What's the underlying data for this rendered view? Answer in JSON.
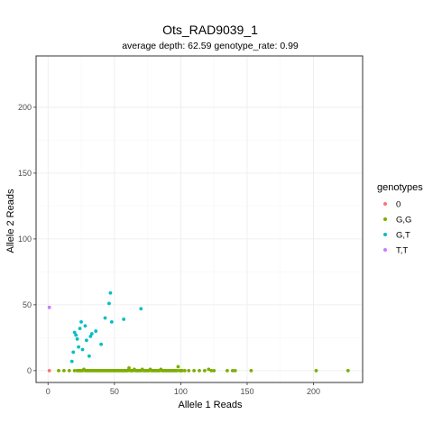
{
  "chart_data": {
    "type": "scatter",
    "title": "Ots_RAD9039_1",
    "subtitle": "average depth:  62.59  genotype_rate:  0.99",
    "xlabel": "Allele 1 Reads",
    "ylabel": "Allele 2 Reads",
    "xlim": [
      -9,
      237
    ],
    "ylim": [
      -9,
      239
    ],
    "xticks": [
      0,
      50,
      100,
      150,
      200
    ],
    "yticks": [
      0,
      50,
      100,
      150,
      200
    ],
    "grid": true,
    "legend": {
      "title": "genotypes",
      "position": "right",
      "entries": [
        {
          "label": "0",
          "color": "#F8766D"
        },
        {
          "label": "G,G",
          "color": "#7CAE00"
        },
        {
          "label": "G,T",
          "color": "#00BFC4"
        },
        {
          "label": "T,T",
          "color": "#C77CFF"
        }
      ]
    },
    "series": [
      {
        "name": "0",
        "color": "#F8766D",
        "x": [
          1
        ],
        "y": [
          0
        ]
      },
      {
        "name": "G,G",
        "color": "#7CAE00",
        "x": [
          8,
          12,
          16,
          20,
          22,
          23,
          24,
          25,
          26,
          27,
          28,
          29,
          30,
          31,
          32,
          33,
          34,
          35,
          36,
          37,
          38,
          39,
          40,
          41,
          42,
          43,
          44,
          45,
          46,
          47,
          48,
          49,
          50,
          51,
          52,
          53,
          54,
          55,
          56,
          57,
          58,
          59,
          60,
          61,
          62,
          63,
          64,
          65,
          66,
          67,
          68,
          69,
          70,
          71,
          72,
          73,
          74,
          75,
          76,
          77,
          78,
          79,
          80,
          81,
          82,
          83,
          84,
          85,
          86,
          87,
          88,
          89,
          90,
          91,
          92,
          93,
          94,
          95,
          96,
          97,
          98,
          99,
          100,
          101,
          103,
          106,
          110,
          114,
          118,
          121,
          123,
          125,
          135,
          139,
          141,
          153,
          202,
          226
        ],
        "y": [
          0,
          0,
          0,
          0,
          0,
          0,
          0,
          0,
          0,
          1,
          0,
          0,
          0,
          0,
          0,
          0,
          0,
          0,
          0,
          0,
          0,
          0,
          0,
          0,
          0,
          0,
          0,
          0,
          0,
          0,
          0,
          0,
          0,
          0,
          0,
          0,
          0,
          0,
          0,
          0,
          0,
          0,
          0,
          2,
          0,
          0,
          0,
          1,
          0,
          0,
          0,
          0,
          0,
          1,
          0,
          0,
          0,
          0,
          0,
          1,
          0,
          0,
          0,
          0,
          0,
          0,
          0,
          1,
          0,
          0,
          0,
          0,
          0,
          0,
          0,
          0,
          0,
          0,
          0,
          0,
          3,
          0,
          0,
          0,
          0,
          0,
          0,
          0,
          0,
          1,
          0,
          0,
          0,
          0,
          0,
          0,
          0,
          0
        ]
      },
      {
        "name": "G,T",
        "color": "#00BFC4",
        "x": [
          18,
          19,
          20,
          21,
          22,
          23,
          24,
          25,
          26,
          28,
          29,
          31,
          32,
          33,
          36,
          40,
          43,
          46,
          47,
          48,
          57,
          70
        ],
        "y": [
          7,
          14,
          29,
          27,
          24,
          18,
          32,
          37,
          16,
          34,
          23,
          11,
          26,
          28,
          30,
          20,
          40,
          51,
          59,
          37,
          39,
          47
        ]
      },
      {
        "name": "T,T",
        "color": "#C77CFF",
        "x": [
          1
        ],
        "y": [
          48
        ]
      }
    ]
  }
}
